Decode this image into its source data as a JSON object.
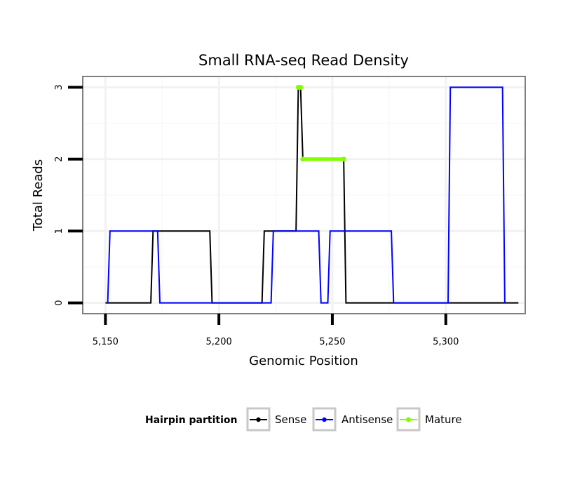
{
  "chart_data": {
    "type": "line",
    "title": "Small RNA-seq Read Density",
    "xlabel": "Genomic Position",
    "ylabel": "Total Reads",
    "xlim": [
      5140,
      5335
    ],
    "ylim": [
      -0.15,
      3.15
    ],
    "x_ticks": [
      5150,
      5200,
      5250,
      5300
    ],
    "x_tick_labels": [
      "5,150",
      "5,200",
      "5,250",
      "5,300"
    ],
    "y_ticks": [
      0,
      1,
      2,
      3
    ],
    "y_tick_labels": [
      "0",
      "1",
      "2",
      "3"
    ],
    "grid": true,
    "legend": {
      "title": "Hairpin partition",
      "position": "bottom",
      "entries": [
        "Sense",
        "Antisense",
        "Mature"
      ]
    },
    "series": [
      {
        "name": "Sense",
        "color": "#000000",
        "x": [
          5150,
          5170,
          5171,
          5196,
          5197,
          5219,
          5220,
          5234,
          5235,
          5236,
          5237,
          5255,
          5256,
          5332
        ],
        "values": [
          0,
          0,
          1,
          1,
          0,
          0,
          1,
          1,
          3,
          3,
          2,
          2,
          0,
          0
        ]
      },
      {
        "name": "Antisense",
        "color": "#0000ff",
        "x": [
          5151,
          5152,
          5173,
          5174,
          5223,
          5224,
          5244,
          5245,
          5248,
          5249,
          5276,
          5277,
          5301,
          5302,
          5325,
          5326
        ],
        "values": [
          0,
          1,
          1,
          0,
          0,
          1,
          1,
          0,
          0,
          1,
          1,
          0,
          0,
          3,
          3,
          0
        ]
      },
      {
        "name": "Mature",
        "color": "#7fff00",
        "segments": [
          {
            "x": [
              5235,
              5236
            ],
            "values": [
              3,
              3
            ]
          },
          {
            "x": [
              5237,
              5255
            ],
            "values": [
              2,
              2
            ]
          }
        ]
      }
    ]
  }
}
